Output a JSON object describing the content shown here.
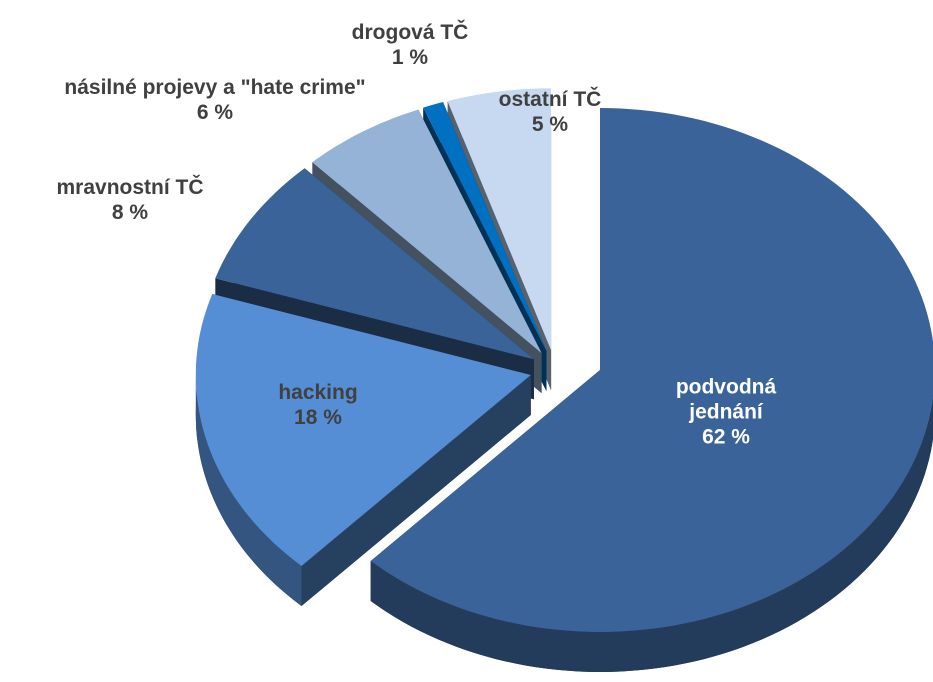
{
  "chart_data": {
    "type": "pie",
    "categories": [
      "podvodná jednání",
      "hacking",
      "mravnostní TČ",
      "násilné projevy a \"hate crime\"",
      "drogová TČ",
      "ostatní TČ"
    ],
    "values": [
      62,
      18,
      8,
      6,
      1,
      5
    ],
    "value_labels": [
      "62 %",
      "18 %",
      "8 %",
      "6 %",
      "1 %",
      "5 %"
    ],
    "colors": [
      "#3a6499",
      "#558ed5",
      "#3a6499",
      "#95b3d7",
      "#0070c0",
      "#c6d9f1"
    ]
  }
}
